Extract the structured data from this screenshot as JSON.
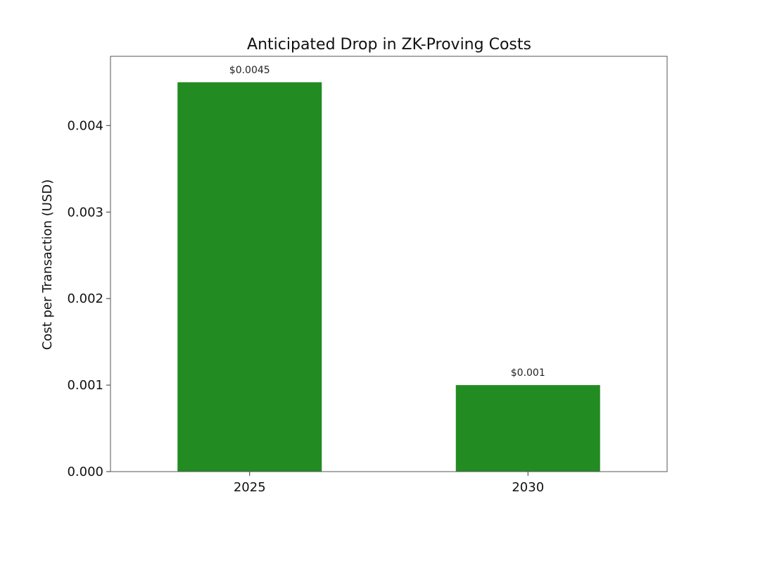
{
  "chart_data": {
    "type": "bar",
    "title": "Anticipated Drop in ZK-Proving Costs",
    "xlabel": "",
    "ylabel": "Cost per Transaction (USD)",
    "categories": [
      "2025",
      "2030"
    ],
    "values": [
      0.0045,
      0.001
    ],
    "data_labels": [
      "$0.0045",
      "$0.001"
    ],
    "ylim": [
      0,
      0.0048
    ],
    "yticks": [
      0,
      0.001,
      0.002,
      0.003,
      0.004
    ],
    "ytick_labels": [
      "0.000",
      "0.001",
      "0.002",
      "0.003",
      "0.004"
    ],
    "grid": false,
    "legend": "none",
    "bar_color": "#228B22"
  }
}
